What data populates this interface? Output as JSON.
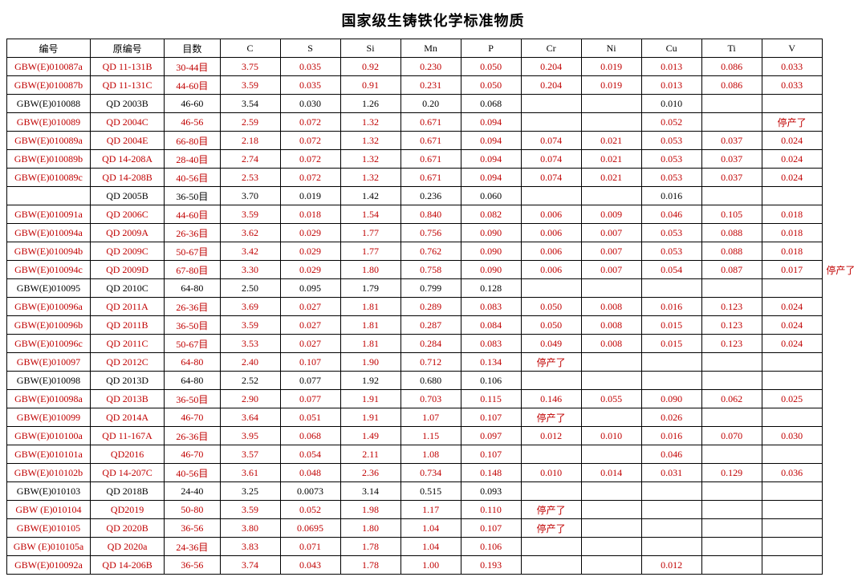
{
  "title": "国家级生铸铁化学标准物质",
  "headers": [
    "编号",
    "原编号",
    "目数",
    "C",
    "S",
    "Si",
    "Mn",
    "P",
    "Cr",
    "Ni",
    "Cu",
    "Ti",
    "V"
  ],
  "rows": [
    {
      "red": true,
      "extra": "",
      "cells": [
        "GBW(E)010087a",
        "QD 11-131B",
        "30-44目",
        "3.75",
        "0.035",
        "0.92",
        "0.230",
        "0.050",
        "0.204",
        "0.019",
        "0.013",
        "0.086",
        "0.033"
      ]
    },
    {
      "red": true,
      "extra": "",
      "cells": [
        "GBW(E)010087b",
        "QD 11-131C",
        "44-60目",
        "3.59",
        "0.035",
        "0.91",
        "0.231",
        "0.050",
        "0.204",
        "0.019",
        "0.013",
        "0.086",
        "0.033"
      ]
    },
    {
      "red": false,
      "extra": "",
      "cells": [
        "GBW(E)010088",
        "QD 2003B",
        "46-60",
        "3.54",
        "0.030",
        "1.26",
        "0.20",
        "0.068",
        "",
        "",
        "0.010",
        "",
        ""
      ]
    },
    {
      "red": true,
      "extra": "",
      "cells": [
        "GBW(E)010089",
        "QD 2004C",
        "46-56",
        "2.59",
        "0.072",
        "1.32",
        "0.671",
        "0.094",
        "",
        "",
        "0.052",
        "",
        "停产了"
      ]
    },
    {
      "red": true,
      "extra": "",
      "cells": [
        "GBW(E)010089a",
        "QD 2004E",
        "66-80目",
        "2.18",
        "0.072",
        "1.32",
        "0.671",
        "0.094",
        "0.074",
        "0.021",
        "0.053",
        "0.037",
        "0.024"
      ]
    },
    {
      "red": true,
      "extra": "",
      "cells": [
        "GBW(E)010089b",
        "QD 14-208A",
        "28-40目",
        "2.74",
        "0.072",
        "1.32",
        "0.671",
        "0.094",
        "0.074",
        "0.021",
        "0.053",
        "0.037",
        "0.024"
      ]
    },
    {
      "red": true,
      "extra": "",
      "cells": [
        "GBW(E)010089c",
        "QD 14-208B",
        "40-56目",
        "2.53",
        "0.072",
        "1.32",
        "0.671",
        "0.094",
        "0.074",
        "0.021",
        "0.053",
        "0.037",
        "0.024"
      ]
    },
    {
      "red": false,
      "extra": "",
      "cells": [
        "",
        "QD 2005B",
        "36-50目",
        "3.70",
        "0.019",
        "1.42",
        "0.236",
        "0.060",
        "",
        "",
        "0.016",
        "",
        ""
      ]
    },
    {
      "red": true,
      "extra": "",
      "cells": [
        "GBW(E)010091a",
        "QD 2006C",
        "44-60目",
        "3.59",
        "0.018",
        "1.54",
        "0.840",
        "0.082",
        "0.006",
        "0.009",
        "0.046",
        "0.105",
        "0.018"
      ]
    },
    {
      "red": true,
      "extra": "",
      "cells": [
        "GBW(E)010094a",
        "QD 2009A",
        "26-36目",
        "3.62",
        "0.029",
        "1.77",
        "0.756",
        "0.090",
        "0.006",
        "0.007",
        "0.053",
        "0.088",
        "0.018"
      ]
    },
    {
      "red": true,
      "extra": "",
      "cells": [
        "GBW(E)010094b",
        "QD 2009C",
        "50-67目",
        "3.42",
        "0.029",
        "1.77",
        "0.762",
        "0.090",
        "0.006",
        "0.007",
        "0.053",
        "0.088",
        "0.018"
      ]
    },
    {
      "red": true,
      "extra": "停产了",
      "cells": [
        "GBW(E)010094c",
        "QD 2009D",
        "67-80目",
        "3.30",
        "0.029",
        "1.80",
        "0.758",
        "0.090",
        "0.006",
        "0.007",
        "0.054",
        "0.087",
        "0.017"
      ]
    },
    {
      "red": false,
      "extra": "",
      "cells": [
        "GBW(E)010095",
        "QD 2010C",
        "64-80",
        "2.50",
        "0.095",
        "1.79",
        "0.799",
        "0.128",
        "",
        "",
        "",
        "",
        ""
      ]
    },
    {
      "red": true,
      "extra": "",
      "cells": [
        "GBW(E)010096a",
        "QD 2011A",
        "26-36目",
        "3.69",
        "0.027",
        "1.81",
        "0.289",
        "0.083",
        "0.050",
        "0.008",
        "0.016",
        "0.123",
        "0.024"
      ]
    },
    {
      "red": true,
      "extra": "",
      "cells": [
        "GBW(E)010096b",
        "QD 2011B",
        "36-50目",
        "3.59",
        "0.027",
        "1.81",
        "0.287",
        "0.084",
        "0.050",
        "0.008",
        "0.015",
        "0.123",
        "0.024"
      ]
    },
    {
      "red": true,
      "extra": "",
      "cells": [
        "GBW(E)010096c",
        "QD 2011C",
        "50-67目",
        "3.53",
        "0.027",
        "1.81",
        "0.284",
        "0.083",
        "0.049",
        "0.008",
        "0.015",
        "0.123",
        "0.024"
      ]
    },
    {
      "red": true,
      "extra": "",
      "cells": [
        "GBW(E)010097",
        "QD 2012C",
        "64-80",
        "2.40",
        "0.107",
        "1.90",
        "0.712",
        "0.134",
        "停产了",
        "",
        "",
        "",
        ""
      ]
    },
    {
      "red": false,
      "extra": "",
      "cells": [
        "GBW(E)010098",
        "QD 2013D",
        "64-80",
        "2.52",
        "0.077",
        "1.92",
        "0.680",
        "0.106",
        "",
        "",
        "",
        "",
        ""
      ]
    },
    {
      "red": true,
      "extra": "",
      "cells": [
        "GBW(E)010098a",
        "QD 2013B",
        "36-50目",
        "2.90",
        "0.077",
        "1.91",
        "0.703",
        "0.115",
        "0.146",
        "0.055",
        "0.090",
        "0.062",
        "0.025"
      ]
    },
    {
      "red": true,
      "extra": "",
      "cells": [
        "GBW(E)010099",
        "QD 2014A",
        "46-70",
        "3.64",
        "0.051",
        "1.91",
        "1.07",
        "0.107",
        "停产了",
        "",
        "0.026",
        "",
        ""
      ]
    },
    {
      "red": true,
      "extra": "",
      "cells": [
        "GBW(E)010100a",
        "QD 11-167A",
        "26-36目",
        "3.95",
        "0.068",
        "1.49",
        "1.15",
        "0.097",
        "0.012",
        "0.010",
        "0.016",
        "0.070",
        "0.030"
      ]
    },
    {
      "red": true,
      "extra": "",
      "cells": [
        "GBW(E)010101a",
        "QD2016",
        "46-70",
        "3.57",
        "0.054",
        "2.11",
        "1.08",
        "0.107",
        "",
        "",
        "0.046",
        "",
        ""
      ]
    },
    {
      "red": true,
      "extra": "",
      "cells": [
        "GBW(E)010102b",
        "QD 14-207C",
        "40-56目",
        "3.61",
        "0.048",
        "2.36",
        "0.734",
        "0.148",
        "0.010",
        "0.014",
        "0.031",
        "0.129",
        "0.036"
      ]
    },
    {
      "red": false,
      "extra": "",
      "cells": [
        "GBW(E)010103",
        "QD 2018B",
        "24-40",
        "3.25",
        "0.0073",
        "3.14",
        "0.515",
        "0.093",
        "",
        "",
        "",
        "",
        ""
      ]
    },
    {
      "red": true,
      "extra": "",
      "cells": [
        "GBW (E)010104",
        "QD2019",
        "50-80",
        "3.59",
        "0.052",
        "1.98",
        "1.17",
        "0.110",
        "停产了",
        "",
        "",
        "",
        ""
      ]
    },
    {
      "red": true,
      "extra": "",
      "cells": [
        "GBW(E)010105",
        "QD 2020B",
        "36-56",
        "3.80",
        "0.0695",
        "1.80",
        "1.04",
        "0.107",
        "停产了",
        "",
        "",
        "",
        ""
      ]
    },
    {
      "red": true,
      "extra": "",
      "cells": [
        "GBW (E)010105a",
        "QD 2020a",
        "24-36目",
        "3.83",
        "0.071",
        "1.78",
        "1.04",
        "0.106",
        "",
        "",
        "",
        "",
        ""
      ]
    },
    {
      "red": true,
      "extra": "",
      "cells": [
        "GBW(E)010092a",
        "QD 14-206B",
        "36-56",
        "3.74",
        "0.043",
        "1.78",
        "1.00",
        "0.193",
        "",
        "",
        "0.012",
        "",
        ""
      ]
    }
  ],
  "style": {
    "title_fontsize": 18,
    "cell_fontsize": 12,
    "text_color": "#000000",
    "red_color": "#c00000",
    "border_color": "#000000",
    "background": "#ffffff"
  }
}
